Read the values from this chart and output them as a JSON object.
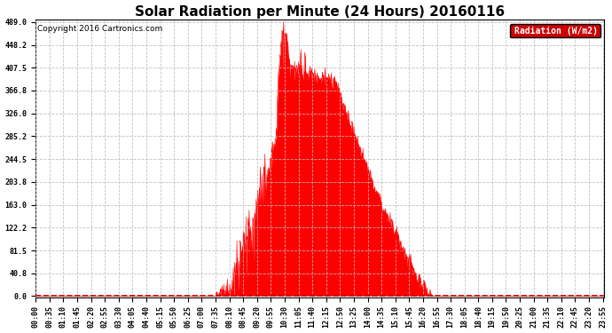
{
  "title": "Solar Radiation per Minute (24 Hours) 20160116",
  "copyright_text": "Copyright 2016 Cartronics.com",
  "legend_label": "Radiation (W/m2)",
  "yticks": [
    0.0,
    40.8,
    81.5,
    122.2,
    163.0,
    203.8,
    244.5,
    285.2,
    326.0,
    366.8,
    407.5,
    448.2,
    489.0
  ],
  "ymax": 489.0,
  "ymin": 0.0,
  "bar_color": "#FF0000",
  "background_color": "#FFFFFF",
  "grid_color": "#BBBBBB",
  "grid_style": "--",
  "title_fontsize": 11,
  "copyright_fontsize": 6.5,
  "axis_fontsize": 6,
  "legend_fontcolor": "#FFFFFF",
  "legend_bgcolor": "#CC0000",
  "tick_interval": 35,
  "total_minutes": 1440
}
